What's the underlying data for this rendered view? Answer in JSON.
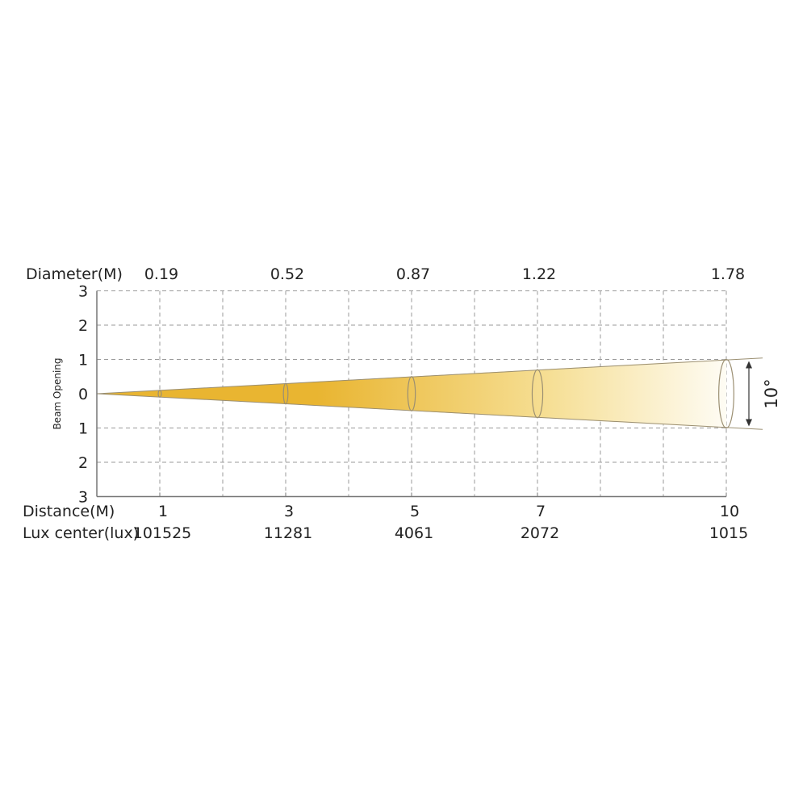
{
  "chart_data": {
    "type": "beam-spread",
    "row_labels": {
      "diameter": "Diameter(M)",
      "distance": "Distance(M)",
      "lux": "Lux center(lux)"
    },
    "y_axis_label": "Beam Opening",
    "beam_angle_label": "10°",
    "y_ticks": [
      "3",
      "2",
      "1",
      "0",
      "1",
      "2",
      "3"
    ],
    "y_range": [
      -3,
      3
    ],
    "x_range": [
      0,
      10
    ],
    "points": [
      {
        "distance": 1,
        "diameter": 0.19,
        "lux": 101525
      },
      {
        "distance": 3,
        "diameter": 0.52,
        "lux": 11281
      },
      {
        "distance": 5,
        "diameter": 0.87,
        "lux": 4061
      },
      {
        "distance": 7,
        "diameter": 1.22,
        "lux": 2072
      },
      {
        "distance": 10,
        "diameter": 1.78,
        "lux": 1015
      }
    ],
    "beam_half_height_at_end": 1,
    "grid": true,
    "colors": {
      "beam_start": "#e9b531",
      "beam_mid": "#f6df95",
      "beam_end": "#fefcf4",
      "grid": "#9a9a9a",
      "axis": "#777777",
      "outline": "#9b8f72"
    }
  }
}
